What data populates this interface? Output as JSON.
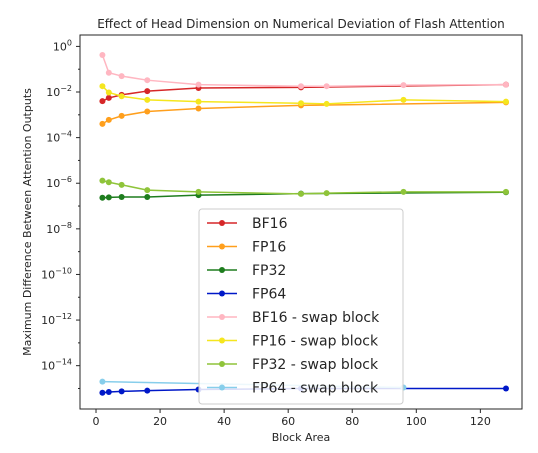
{
  "chart_data": {
    "type": "line",
    "title": "Effect of Head Dimension on Numerical Deviation of Flash Attention",
    "xlabel": "Block Area",
    "ylabel": "Maximum Difference Between Attention Outputs",
    "xlim": [
      -5,
      133
    ],
    "ylim_log10": [
      -15.9,
      0.5
    ],
    "yscale": "log",
    "grid": false,
    "legend_placement": "center-bottom",
    "x_ticks": [
      0,
      20,
      40,
      60,
      80,
      100,
      120
    ],
    "x_tick_labels": [
      "0",
      "20",
      "40",
      "60",
      "80",
      "100",
      "120"
    ],
    "y_tick_exponents": [
      0,
      -2,
      -4,
      -6,
      -8,
      -10,
      -12,
      -14
    ],
    "y_tick_labels": [
      "10",
      "10",
      "10",
      "10",
      "10",
      "10",
      "10",
      "10"
    ],
    "y_tick_superscripts": [
      "0",
      "−2",
      "−4",
      "−6",
      "−8",
      "−10",
      "−12",
      "−14"
    ],
    "series": [
      {
        "name": "BF16",
        "color": "#d62728",
        "x": [
          2,
          4,
          8,
          16,
          32,
          64,
          128
        ],
        "y": [
          0.004,
          0.0055,
          0.0075,
          0.011,
          0.015,
          0.016,
          0.021
        ]
      },
      {
        "name": "FP16",
        "color": "#ff9f1c",
        "x": [
          2,
          4,
          8,
          16,
          32,
          64,
          128
        ],
        "y": [
          0.0004,
          0.0006,
          0.0009,
          0.0014,
          0.0019,
          0.0026,
          0.0035
        ]
      },
      {
        "name": "FP32",
        "color": "#1e7d1e",
        "x": [
          2,
          4,
          8,
          16,
          32,
          64,
          128
        ],
        "y": [
          2.3e-07,
          2.4e-07,
          2.5e-07,
          2.5e-07,
          3e-07,
          3.5e-07,
          4e-07
        ]
      },
      {
        "name": "FP64",
        "color": "#0018c8",
        "x": [
          2,
          4,
          8,
          16,
          32,
          64,
          128
        ],
        "y": [
          6.5e-16,
          7e-16,
          7.5e-16,
          8e-16,
          9e-16,
          1e-15,
          1e-15
        ]
      },
      {
        "name": "BF16 - swap block",
        "color": "#ffb6c1",
        "x": [
          2,
          4,
          8,
          16,
          32,
          64,
          72,
          96,
          128
        ],
        "y": [
          0.42,
          0.07,
          0.05,
          0.033,
          0.021,
          0.018,
          0.018,
          0.02,
          0.021
        ]
      },
      {
        "name": "FP16 - swap block",
        "color": "#f5e61e",
        "x": [
          2,
          4,
          8,
          16,
          32,
          64,
          72,
          96,
          128
        ],
        "y": [
          0.018,
          0.0095,
          0.0065,
          0.0045,
          0.0038,
          0.0032,
          0.003,
          0.0045,
          0.0038
        ]
      },
      {
        "name": "FP32 - swap block",
        "color": "#8fc43a",
        "x": [
          2,
          4,
          8,
          16,
          32,
          64,
          72,
          96,
          128
        ],
        "y": [
          1.3e-06,
          1.1e-06,
          8.5e-07,
          5e-07,
          4.2e-07,
          3.4e-07,
          3.7e-07,
          4.2e-07,
          4.2e-07
        ]
      },
      {
        "name": "FP64 - swap block",
        "color": "#87ceeb",
        "x": [
          2,
          96
        ],
        "y": [
          2e-15,
          1.1e-15
        ]
      }
    ]
  }
}
